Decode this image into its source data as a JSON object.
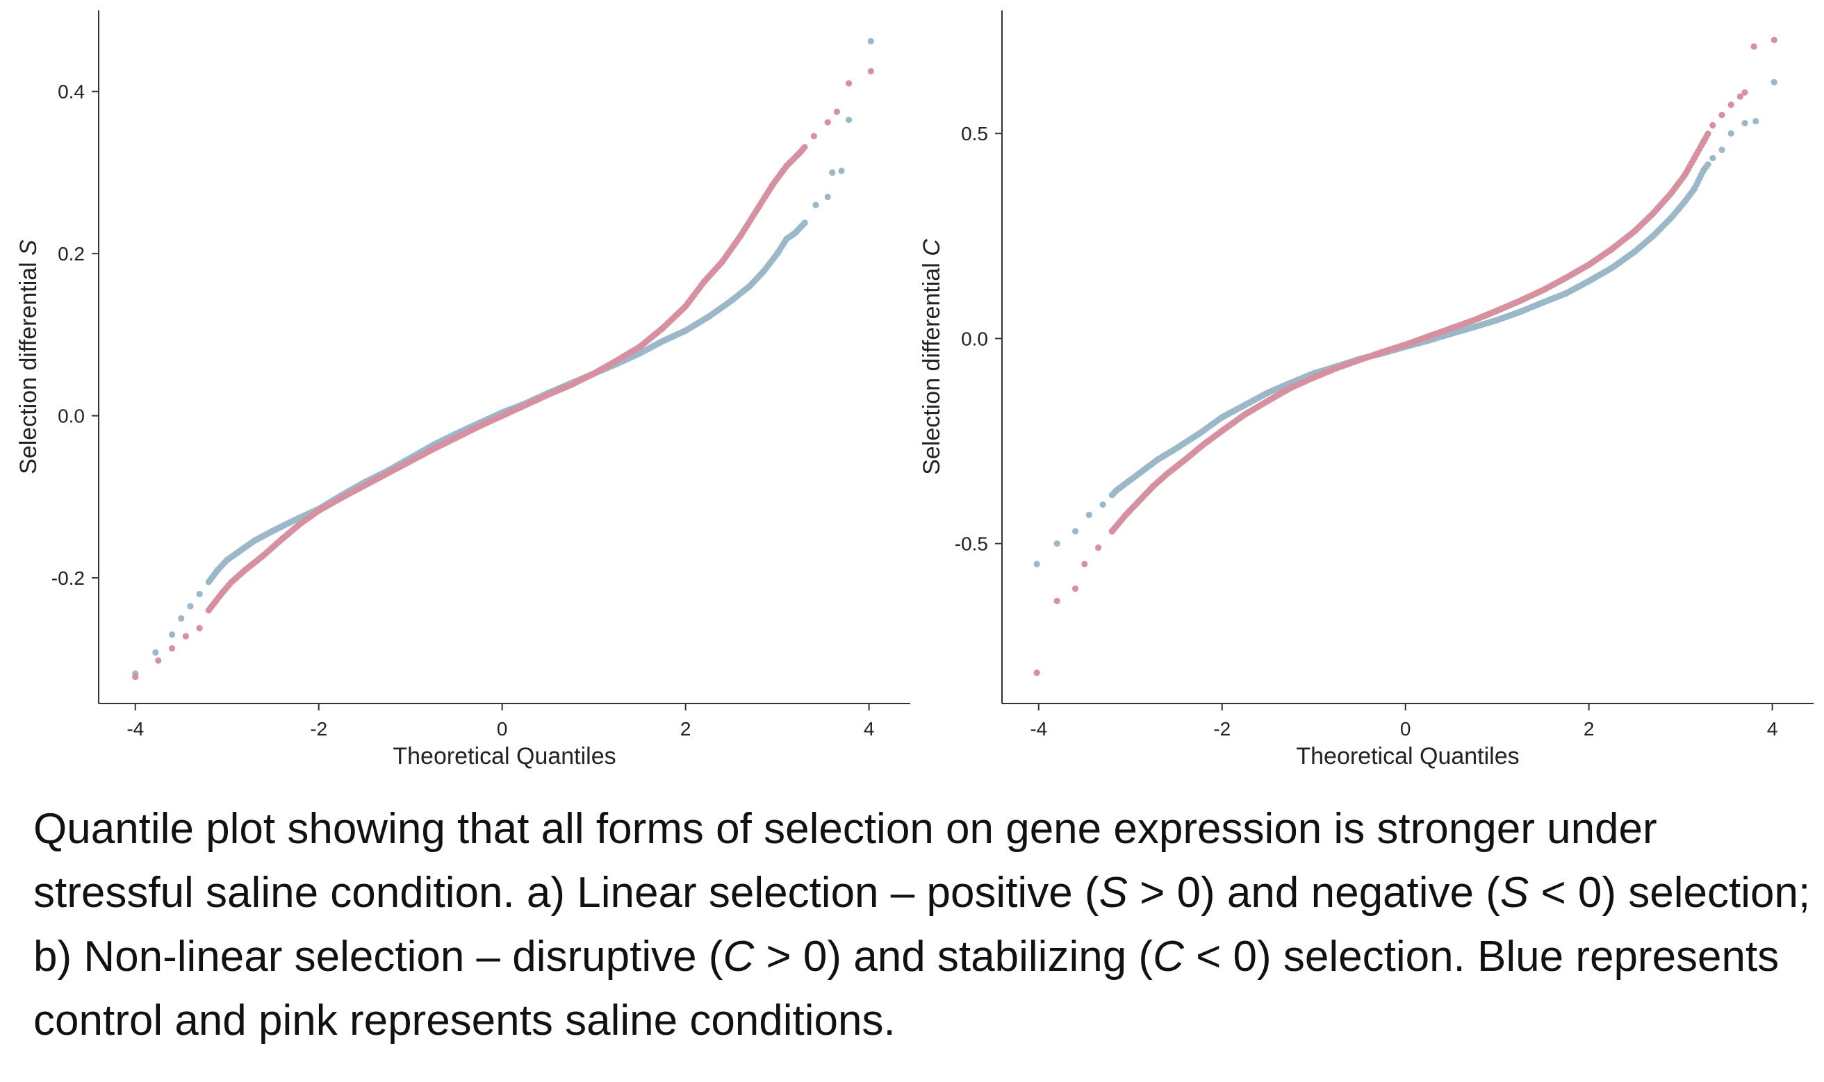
{
  "caption": {
    "p1": "Quantile plot showing that all forms of selection on gene expression is stronger under stressful saline condition. a) Linear selection – positive (",
    "s1": "S",
    "p2": " > 0)  and  negative (",
    "s2": "S",
    "p3": " < 0) selection; b) Non-linear selection – disruptive (",
    "c1": "C",
    "p4": " > 0) and stabilizing (",
    "c2": "C",
    "p5": " < 0) selection. Blue represents control and pink represents saline conditions."
  },
  "colors": {
    "control": "#9ab8c8",
    "saline": "#d7909f",
    "axis": "#333333"
  },
  "chart_data": [
    {
      "type": "scatter",
      "title": "",
      "xlabel": "Theoretical Quantiles",
      "ylabel_prefix": "Selection differential ",
      "ylabel_symbol": "S",
      "xlim": [
        -4.4,
        4.45
      ],
      "ylim": [
        -0.355,
        0.5
      ],
      "xticks": [
        -4,
        -2,
        0,
        2,
        4
      ],
      "xtick_labels": [
        "-4",
        "-2",
        "0",
        "2",
        "4"
      ],
      "yticks": [
        -0.2,
        0.0,
        0.2,
        0.4
      ],
      "ytick_labels": [
        "-0.2",
        "0.0",
        "0.2",
        "0.4"
      ],
      "series": [
        {
          "key": "control",
          "color": "#9ab8c8",
          "points": [
            [
              -4.0,
              -0.318
            ],
            [
              -3.78,
              -0.292
            ],
            [
              -3.6,
              -0.27
            ],
            [
              -3.5,
              -0.25
            ],
            [
              -3.4,
              -0.235
            ],
            [
              -3.3,
              -0.22
            ],
            [
              -3.2,
              -0.205
            ],
            [
              -3.1,
              -0.19
            ],
            [
              -3.0,
              -0.178
            ],
            [
              -2.9,
              -0.17
            ],
            [
              -2.8,
              -0.162
            ],
            [
              -2.7,
              -0.154
            ],
            [
              -2.5,
              -0.142
            ],
            [
              -2.25,
              -0.128
            ],
            [
              -2.0,
              -0.115
            ],
            [
              -1.75,
              -0.098
            ],
            [
              -1.5,
              -0.082
            ],
            [
              -1.25,
              -0.068
            ],
            [
              -1.0,
              -0.052
            ],
            [
              -0.75,
              -0.036
            ],
            [
              -0.5,
              -0.022
            ],
            [
              -0.25,
              -0.009
            ],
            [
              0.0,
              0.004
            ],
            [
              0.25,
              0.015
            ],
            [
              0.5,
              0.028
            ],
            [
              0.75,
              0.04
            ],
            [
              1.0,
              0.052
            ],
            [
              1.25,
              0.064
            ],
            [
              1.5,
              0.077
            ],
            [
              1.75,
              0.092
            ],
            [
              2.0,
              0.105
            ],
            [
              2.25,
              0.122
            ],
            [
              2.5,
              0.142
            ],
            [
              2.7,
              0.16
            ],
            [
              2.85,
              0.178
            ],
            [
              3.0,
              0.2
            ],
            [
              3.1,
              0.218
            ],
            [
              3.2,
              0.226
            ],
            [
              3.3,
              0.238
            ],
            [
              3.42,
              0.26
            ],
            [
              3.55,
              0.27
            ],
            [
              3.6,
              0.3
            ],
            [
              3.7,
              0.302
            ],
            [
              3.78,
              0.365
            ],
            [
              4.02,
              0.462
            ]
          ]
        },
        {
          "key": "saline",
          "color": "#d7909f",
          "points": [
            [
              -4.0,
              -0.322
            ],
            [
              -3.75,
              -0.302
            ],
            [
              -3.6,
              -0.287
            ],
            [
              -3.45,
              -0.272
            ],
            [
              -3.3,
              -0.262
            ],
            [
              -3.2,
              -0.24
            ],
            [
              -3.05,
              -0.218
            ],
            [
              -2.95,
              -0.205
            ],
            [
              -2.8,
              -0.19
            ],
            [
              -2.6,
              -0.172
            ],
            [
              -2.4,
              -0.152
            ],
            [
              -2.2,
              -0.133
            ],
            [
              -2.0,
              -0.117
            ],
            [
              -1.75,
              -0.101
            ],
            [
              -1.5,
              -0.086
            ],
            [
              -1.25,
              -0.071
            ],
            [
              -1.0,
              -0.056
            ],
            [
              -0.75,
              -0.041
            ],
            [
              -0.5,
              -0.027
            ],
            [
              -0.25,
              -0.013
            ],
            [
              0.0,
              0.0
            ],
            [
              0.25,
              0.013
            ],
            [
              0.5,
              0.026
            ],
            [
              0.75,
              0.038
            ],
            [
              1.0,
              0.052
            ],
            [
              1.25,
              0.068
            ],
            [
              1.5,
              0.085
            ],
            [
              1.75,
              0.108
            ],
            [
              2.0,
              0.135
            ],
            [
              2.2,
              0.165
            ],
            [
              2.4,
              0.19
            ],
            [
              2.6,
              0.222
            ],
            [
              2.8,
              0.258
            ],
            [
              2.95,
              0.285
            ],
            [
              3.1,
              0.308
            ],
            [
              3.25,
              0.325
            ],
            [
              3.4,
              0.345
            ],
            [
              3.55,
              0.362
            ],
            [
              3.65,
              0.375
            ],
            [
              3.78,
              0.41
            ],
            [
              4.02,
              0.425
            ]
          ]
        }
      ]
    },
    {
      "type": "scatter",
      "title": "",
      "xlabel": "Theoretical Quantiles",
      "ylabel_prefix": "Selection differential ",
      "ylabel_symbol": "C",
      "xlim": [
        -4.4,
        4.45
      ],
      "ylim": [
        -0.89,
        0.8
      ],
      "xticks": [
        -4,
        -2,
        0,
        2,
        4
      ],
      "xtick_labels": [
        "-4",
        "-2",
        "0",
        "2",
        "4"
      ],
      "yticks": [
        -0.5,
        0.0,
        0.5
      ],
      "ytick_labels": [
        "-0.5",
        "0.0",
        "0.5"
      ],
      "series": [
        {
          "key": "control",
          "color": "#9ab8c8",
          "points": [
            [
              -4.02,
              -0.55
            ],
            [
              -3.8,
              -0.5
            ],
            [
              -3.6,
              -0.47
            ],
            [
              -3.45,
              -0.43
            ],
            [
              -3.3,
              -0.405
            ],
            [
              -3.15,
              -0.37
            ],
            [
              -3.0,
              -0.345
            ],
            [
              -2.85,
              -0.32
            ],
            [
              -2.7,
              -0.295
            ],
            [
              -2.5,
              -0.268
            ],
            [
              -2.25,
              -0.232
            ],
            [
              -2.0,
              -0.192
            ],
            [
              -1.75,
              -0.162
            ],
            [
              -1.5,
              -0.132
            ],
            [
              -1.25,
              -0.108
            ],
            [
              -1.0,
              -0.085
            ],
            [
              -0.75,
              -0.068
            ],
            [
              -0.5,
              -0.05
            ],
            [
              -0.25,
              -0.036
            ],
            [
              0.0,
              -0.02
            ],
            [
              0.25,
              -0.005
            ],
            [
              0.5,
              0.012
            ],
            [
              0.75,
              0.028
            ],
            [
              1.0,
              0.045
            ],
            [
              1.25,
              0.065
            ],
            [
              1.5,
              0.088
            ],
            [
              1.75,
              0.11
            ],
            [
              2.0,
              0.14
            ],
            [
              2.25,
              0.172
            ],
            [
              2.5,
              0.212
            ],
            [
              2.7,
              0.25
            ],
            [
              2.9,
              0.295
            ],
            [
              3.05,
              0.335
            ],
            [
              3.15,
              0.365
            ],
            [
              3.25,
              0.41
            ],
            [
              3.35,
              0.44
            ],
            [
              3.45,
              0.46
            ],
            [
              3.55,
              0.5
            ],
            [
              3.7,
              0.525
            ],
            [
              3.82,
              0.53
            ],
            [
              4.02,
              0.625
            ]
          ]
        },
        {
          "key": "saline",
          "color": "#d7909f",
          "points": [
            [
              -4.02,
              -0.815
            ],
            [
              -3.8,
              -0.64
            ],
            [
              -3.6,
              -0.61
            ],
            [
              -3.5,
              -0.55
            ],
            [
              -3.35,
              -0.51
            ],
            [
              -3.2,
              -0.47
            ],
            [
              -3.05,
              -0.43
            ],
            [
              -2.9,
              -0.395
            ],
            [
              -2.75,
              -0.36
            ],
            [
              -2.6,
              -0.33
            ],
            [
              -2.4,
              -0.295
            ],
            [
              -2.2,
              -0.258
            ],
            [
              -2.0,
              -0.225
            ],
            [
              -1.75,
              -0.185
            ],
            [
              -1.5,
              -0.152
            ],
            [
              -1.25,
              -0.12
            ],
            [
              -1.0,
              -0.095
            ],
            [
              -0.75,
              -0.072
            ],
            [
              -0.5,
              -0.052
            ],
            [
              -0.25,
              -0.033
            ],
            [
              0.0,
              -0.015
            ],
            [
              0.25,
              0.005
            ],
            [
              0.5,
              0.025
            ],
            [
              0.75,
              0.045
            ],
            [
              1.0,
              0.068
            ],
            [
              1.25,
              0.092
            ],
            [
              1.5,
              0.118
            ],
            [
              1.75,
              0.148
            ],
            [
              2.0,
              0.18
            ],
            [
              2.25,
              0.218
            ],
            [
              2.5,
              0.262
            ],
            [
              2.7,
              0.305
            ],
            [
              2.9,
              0.355
            ],
            [
              3.05,
              0.4
            ],
            [
              3.15,
              0.44
            ],
            [
              3.25,
              0.48
            ],
            [
              3.35,
              0.52
            ],
            [
              3.45,
              0.545
            ],
            [
              3.55,
              0.57
            ],
            [
              3.65,
              0.59
            ],
            [
              3.7,
              0.6
            ],
            [
              3.8,
              0.712
            ],
            [
              4.02,
              0.728
            ]
          ]
        }
      ]
    }
  ]
}
